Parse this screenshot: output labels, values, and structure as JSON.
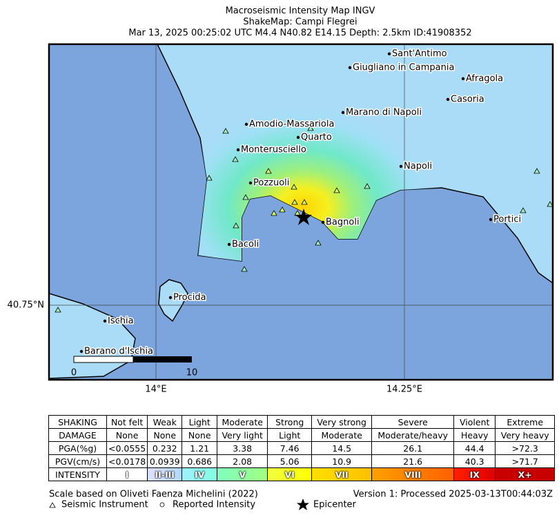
{
  "header": {
    "title": "Macroseismic Intensity Map INGV",
    "subtitle": "ShakeMap: Campi Flegrei",
    "event": "Mar 13, 2025 00:25:02 UTC M4.4 N40.82 E14.15 Depth: 2.5km ID:41908352"
  },
  "map": {
    "places": [
      "Sant'Antimo",
      "Giugliano in Campania",
      "Afragola",
      "Casoria",
      "Marano di Napoli",
      "Amodio-Massariola",
      "Quarto",
      "Monterusciello",
      "Napoli",
      "Pozzuoli",
      "Bagnoli",
      "Portici",
      "Bacoli",
      "Procida",
      "Ischia",
      "Barano d'Ischia"
    ],
    "lon_labels": [
      "14°E",
      "14.25°E"
    ],
    "lat_labels": [
      "40.75°N"
    ],
    "scale_bar": [
      "0",
      "10"
    ]
  },
  "table": {
    "rows": [
      [
        "SHAKING",
        "Not felt",
        "Weak",
        "Light",
        "Moderate",
        "Strong",
        "Very strong",
        "Severe",
        "Violent",
        "Extreme"
      ],
      [
        "DAMAGE",
        "None",
        "None",
        "None",
        "Very light",
        "Light",
        "Moderate",
        "Moderate/heavy",
        "Heavy",
        "Very heavy"
      ],
      [
        "PGA(%g)",
        "<0.0555",
        "0.232",
        "1.21",
        "3.38",
        "7.46",
        "14.5",
        "26.1",
        "44.4",
        ">72.3"
      ],
      [
        "PGV(cm/s)",
        "<0.0178",
        "0.0939",
        "0.686",
        "2.08",
        "5.06",
        "10.9",
        "21.6",
        "40.3",
        ">71.7"
      ],
      [
        "INTENSITY",
        "I",
        "II-III",
        "IV",
        "V",
        "VI",
        "VII",
        "VIII",
        "IX",
        "X+"
      ]
    ]
  },
  "footer": {
    "scale_note": "Scale based on Oliveti Faenza Michelini (2022)",
    "version": "Version 1: Processed 2025-03-13T00:44:03Z",
    "legend": [
      "Seismic Instrument",
      "Reported Intensity",
      "Epicenter"
    ]
  }
}
